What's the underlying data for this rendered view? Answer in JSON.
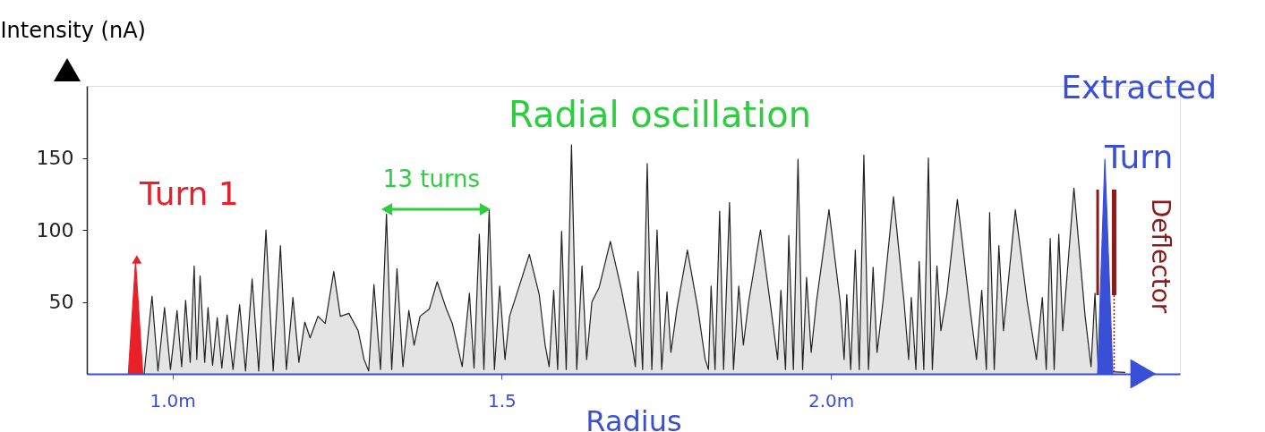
{
  "chart_data": {
    "type": "area",
    "ylabel": "Intensity (nA)",
    "xlabel": "Radius",
    "xlim": [
      0.87,
      2.53
    ],
    "ylim": [
      0,
      200
    ],
    "xticks": [
      {
        "value": 1.0,
        "label": "1.0m"
      },
      1.5,
      {
        "value": 2.0,
        "label": "2.0m"
      }
    ],
    "yticks": [
      50,
      100,
      150
    ],
    "grid": false,
    "annotations": [
      "Radial oscillation",
      "13 turns"
    ],
    "ref_lines": [
      {
        "axis": "x",
        "value": 2.405,
        "label": null,
        "color": "#8b1a1a"
      },
      {
        "axis": "x",
        "value": 2.43,
        "label": "Deflector",
        "color": "#8b1a1a"
      }
    ],
    "series": [
      {
        "color": "#222222",
        "x": [
          0.957,
          0.969,
          0.978,
          0.988,
          0.997,
          1.007,
          1.014,
          1.02,
          1.027,
          1.033,
          1.037,
          1.042,
          1.049,
          1.054,
          1.061,
          1.068,
          1.075,
          1.083,
          1.092,
          1.102,
          1.111,
          1.121,
          1.131,
          1.142,
          1.153,
          1.164,
          1.173,
          1.183,
          1.192,
          1.201,
          1.209,
          1.221,
          1.232,
          1.245,
          1.255,
          1.268,
          1.282,
          1.291,
          1.298,
          1.306,
          1.316,
          1.325,
          1.333,
          1.341,
          1.35,
          1.359,
          1.367,
          1.376,
          1.39,
          1.402,
          1.416,
          1.425,
          1.44,
          1.451,
          1.458,
          1.466,
          1.473,
          1.481,
          1.489,
          1.497,
          1.505,
          1.512,
          1.526,
          1.542,
          1.557,
          1.566,
          1.572,
          1.579,
          1.585,
          1.591,
          1.598,
          1.606,
          1.614,
          1.622,
          1.629,
          1.637,
          1.648,
          1.665,
          1.682,
          1.698,
          1.703,
          1.707,
          1.714,
          1.721,
          1.728,
          1.736,
          1.743,
          1.751,
          1.757,
          1.766,
          1.782,
          1.798,
          1.809,
          1.814,
          1.818,
          1.824,
          1.831,
          1.837,
          1.846,
          1.852,
          1.86,
          1.867,
          1.875,
          1.893,
          1.909,
          1.919,
          1.924,
          1.931,
          1.936,
          1.943,
          1.95,
          1.957,
          1.963,
          1.97,
          1.978,
          1.997,
          2.014,
          2.02,
          2.024,
          2.03,
          2.037,
          2.043,
          2.05,
          2.057,
          2.064,
          2.07,
          2.079,
          2.095,
          2.111,
          2.118,
          2.122,
          2.129,
          2.134,
          2.141,
          2.148,
          2.154,
          2.161,
          2.167,
          2.176,
          2.192,
          2.21,
          2.221,
          2.229,
          2.236,
          2.241,
          2.248,
          2.255,
          2.262,
          2.28,
          2.298,
          2.312,
          2.321,
          2.327,
          2.333,
          2.339,
          2.346,
          2.352,
          2.369,
          2.386,
          2.395,
          2.401,
          2.406,
          2.447
        ],
        "values": [
          0,
          54,
          2,
          46,
          3,
          44,
          5,
          51,
          8,
          75,
          10,
          68,
          8,
          46,
          6,
          39,
          4,
          41,
          3,
          48,
          2,
          66,
          2,
          100,
          2,
          89,
          3,
          53,
          8,
          36,
          25,
          40,
          35,
          71,
          40,
          42,
          30,
          10,
          2,
          62,
          3,
          111,
          3,
          73,
          5,
          44,
          20,
          40,
          45,
          64,
          45,
          35,
          5,
          56,
          4,
          97,
          3,
          114,
          3,
          61,
          10,
          40,
          60,
          83,
          55,
          20,
          5,
          58,
          3,
          99,
          3,
          159,
          3,
          75,
          10,
          50,
          60,
          92,
          58,
          20,
          5,
          71,
          3,
          146,
          3,
          100,
          3,
          57,
          15,
          45,
          86,
          45,
          10,
          3,
          61,
          3,
          113,
          3,
          119,
          3,
          61,
          20,
          50,
          100,
          45,
          10,
          58,
          3,
          96,
          3,
          149,
          3,
          67,
          15,
          50,
          114,
          50,
          10,
          55,
          3,
          86,
          3,
          152,
          3,
          74,
          15,
          50,
          123,
          50,
          10,
          53,
          3,
          78,
          3,
          150,
          3,
          75,
          30,
          55,
          121,
          50,
          10,
          58,
          3,
          112,
          3,
          89,
          30,
          114,
          50,
          10,
          53,
          3,
          94,
          3,
          97,
          30,
          129,
          40,
          5,
          56,
          2,
          1
        ]
      },
      {
        "name": "Turn 1",
        "color": "#e8202a",
        "x": [
          0.933,
          0.944,
          0.955
        ],
        "values": [
          0,
          78,
          0
        ]
      },
      {
        "name": "Extracted Turn",
        "color": "#3a4fd8",
        "x": [
          2.405,
          2.416,
          2.428
        ],
        "values": [
          0,
          149,
          0
        ]
      }
    ]
  }
}
